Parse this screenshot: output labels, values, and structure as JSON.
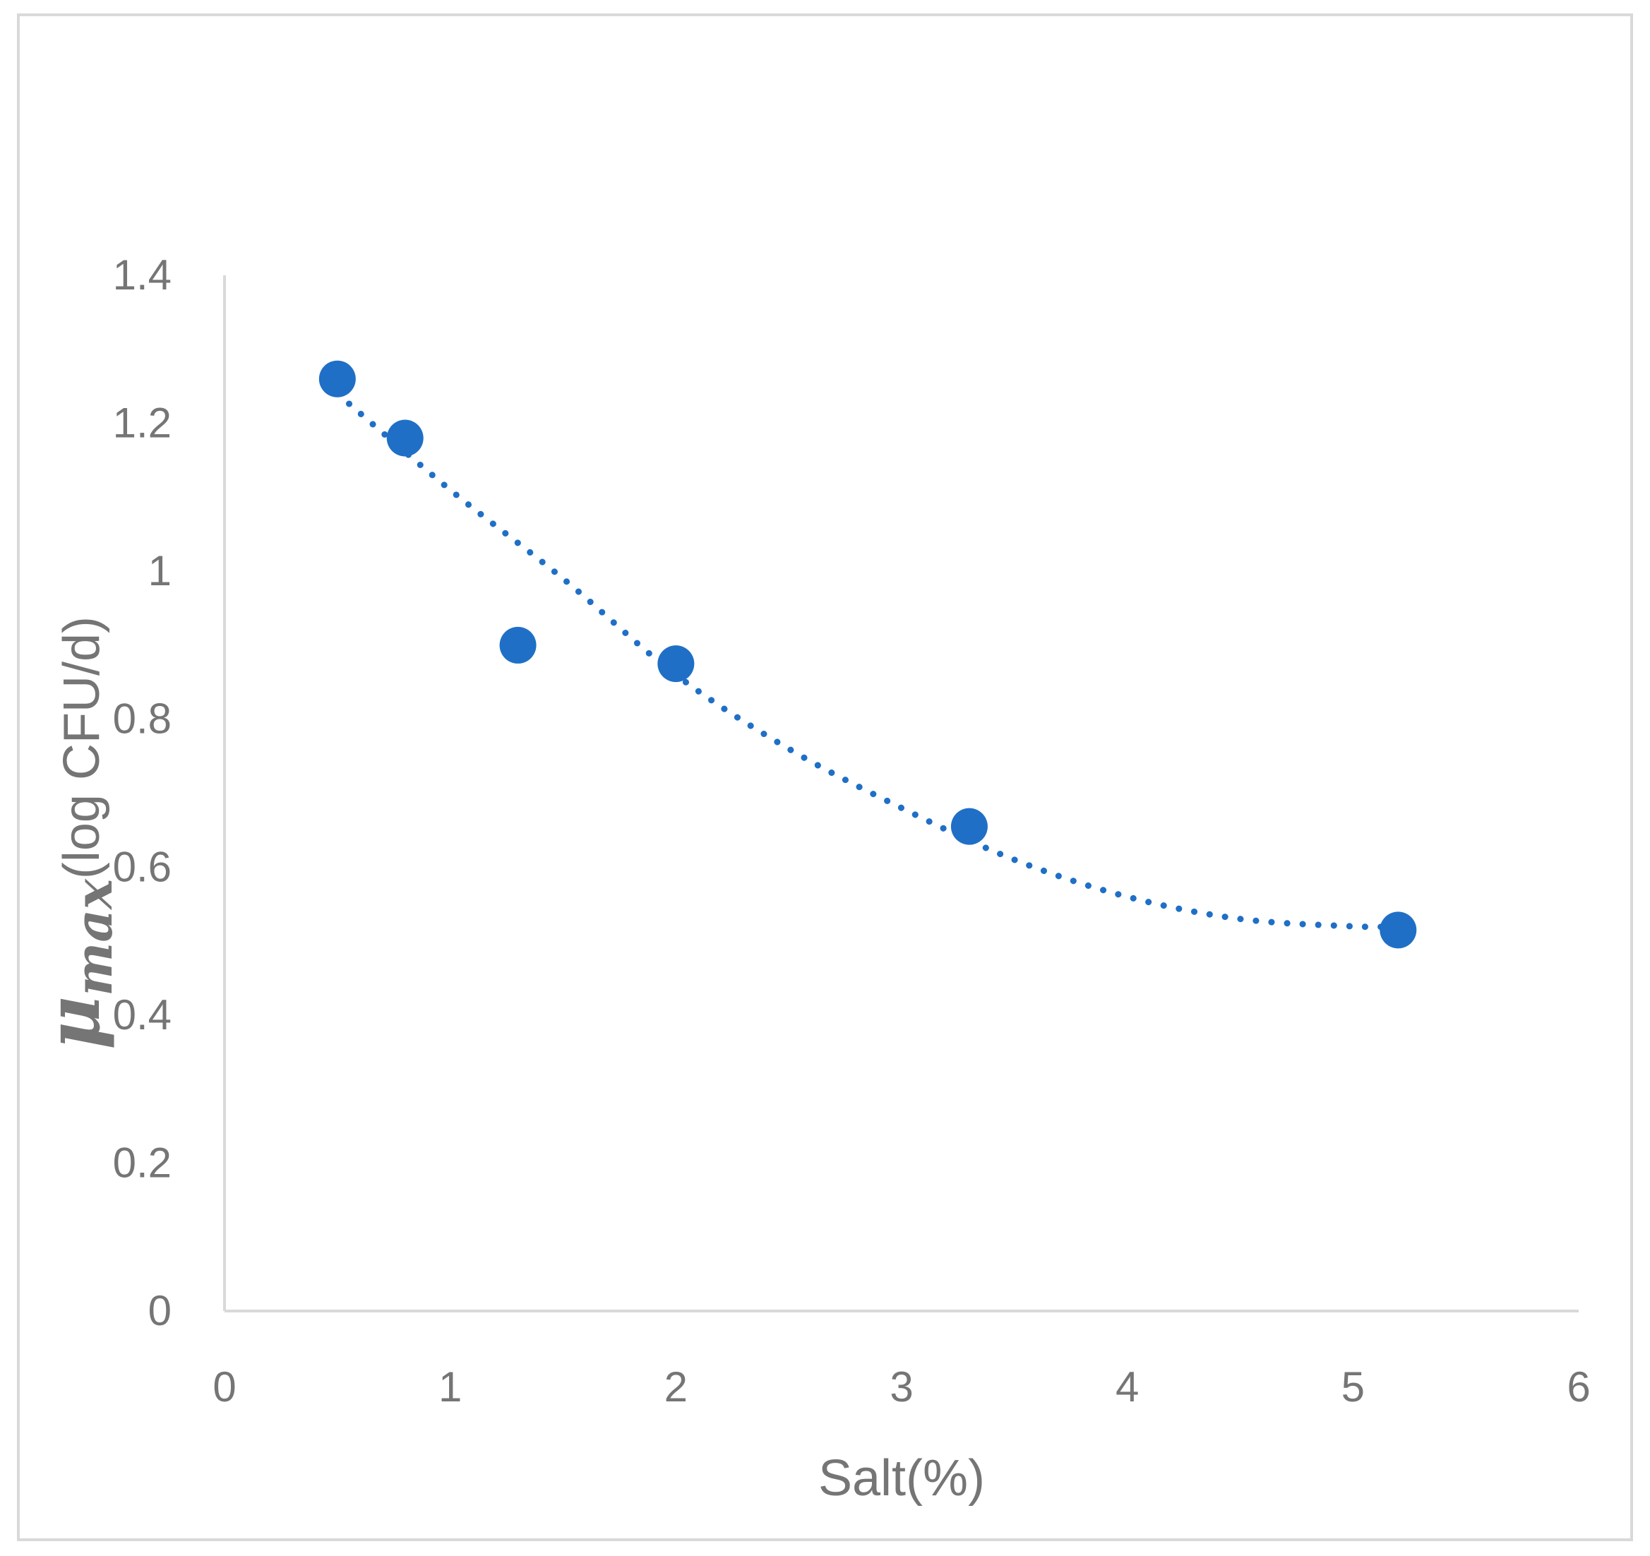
{
  "chart_data": {
    "type": "scatter",
    "title": "",
    "xlabel": "Salt(%)",
    "ylabel": {
      "symbol": "μ",
      "subscript": "max",
      "rest": "(log CFU/d)"
    },
    "xlim": [
      0,
      6
    ],
    "ylim": [
      0,
      1.4
    ],
    "x_ticks": [
      0,
      1,
      2,
      3,
      4,
      5,
      6
    ],
    "y_ticks": [
      0,
      0.2,
      0.4,
      0.6,
      0.8,
      1,
      1.2,
      1.4
    ],
    "x_tick_labels": [
      "0",
      "1",
      "2",
      "3",
      "4",
      "5",
      "6"
    ],
    "y_tick_labels": [
      "0",
      "0.2",
      "0.4",
      "0.6",
      "0.8",
      "1",
      "1.2",
      "1.4"
    ],
    "grid": false,
    "legend": "none",
    "series": [
      {
        "points": [
          {
            "x": 0.5,
            "y": 1.26
          },
          {
            "x": 0.8,
            "y": 1.18
          },
          {
            "x": 1.3,
            "y": 0.9
          },
          {
            "x": 2.0,
            "y": 0.875
          },
          {
            "x": 3.3,
            "y": 0.655
          },
          {
            "x": 5.2,
            "y": 0.515
          }
        ],
        "color": "#1f6fc6"
      }
    ],
    "trendline": {
      "type": "polynomial",
      "style": "dotted",
      "color": "#1f6fc6",
      "x_range": [
        0.5,
        5.2
      ],
      "curve": [
        {
          "x": 0.5,
          "y": 1.24
        },
        {
          "x": 1.0,
          "y": 1.11
        },
        {
          "x": 1.5,
          "y": 0.99
        },
        {
          "x": 2.0,
          "y": 0.86
        },
        {
          "x": 2.5,
          "y": 0.76
        },
        {
          "x": 3.0,
          "y": 0.68
        },
        {
          "x": 3.5,
          "y": 0.61
        },
        {
          "x": 4.0,
          "y": 0.56
        },
        {
          "x": 4.5,
          "y": 0.53
        },
        {
          "x": 5.0,
          "y": 0.52
        },
        {
          "x": 5.2,
          "y": 0.52
        }
      ]
    },
    "axis_color": "#d9d9d9"
  }
}
